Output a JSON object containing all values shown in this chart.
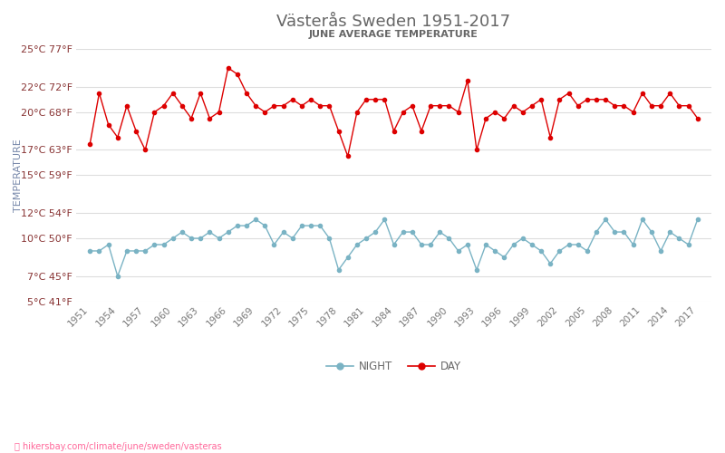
{
  "title": "Västerås Sweden 1951-2017",
  "subtitle": "JUNE AVERAGE TEMPERATURE",
  "ylabel": "TEMPERATURE",
  "xlabel_url": "hikersbay.com/climate/june/sweden/vasteras",
  "yticks_celsius": [
    25,
    22,
    20,
    17,
    15,
    12,
    10,
    7,
    5
  ],
  "yticks_fahrenheit": [
    77,
    72,
    68,
    63,
    59,
    54,
    50,
    45,
    41
  ],
  "years": [
    1951,
    1952,
    1953,
    1954,
    1955,
    1956,
    1957,
    1958,
    1959,
    1960,
    1961,
    1962,
    1963,
    1964,
    1965,
    1966,
    1967,
    1968,
    1969,
    1970,
    1971,
    1972,
    1973,
    1974,
    1975,
    1976,
    1977,
    1978,
    1979,
    1980,
    1981,
    1982,
    1983,
    1984,
    1985,
    1986,
    1987,
    1988,
    1989,
    1990,
    1991,
    1992,
    1993,
    1994,
    1995,
    1996,
    1997,
    1998,
    1999,
    2000,
    2001,
    2002,
    2003,
    2004,
    2005,
    2006,
    2007,
    2008,
    2009,
    2010,
    2011,
    2012,
    2013,
    2014,
    2015,
    2016,
    2017
  ],
  "day_temps": [
    17.5,
    21.5,
    19.0,
    18.0,
    20.5,
    18.5,
    17.0,
    20.0,
    20.5,
    21.5,
    20.5,
    19.5,
    21.5,
    19.5,
    20.0,
    23.5,
    23.0,
    21.5,
    20.5,
    20.0,
    20.5,
    20.5,
    21.0,
    20.5,
    21.0,
    20.5,
    20.5,
    18.5,
    16.5,
    20.0,
    21.0,
    21.0,
    21.0,
    18.5,
    20.0,
    20.5,
    18.5,
    20.5,
    20.5,
    20.5,
    20.0,
    22.5,
    17.0,
    19.5,
    20.0,
    19.5,
    20.5,
    20.0,
    20.5,
    21.0,
    18.0,
    21.0,
    21.5,
    20.5,
    21.0,
    21.0,
    21.0,
    20.5,
    20.5,
    20.0,
    21.5,
    20.5,
    20.5,
    21.5,
    20.5,
    20.5,
    19.5
  ],
  "night_temps": [
    9.0,
    9.0,
    9.5,
    7.0,
    9.0,
    9.0,
    9.0,
    9.5,
    9.5,
    10.0,
    10.5,
    10.0,
    10.0,
    10.5,
    10.0,
    10.5,
    11.0,
    11.0,
    11.5,
    11.0,
    9.5,
    10.5,
    10.0,
    11.0,
    11.0,
    11.0,
    10.0,
    7.5,
    8.5,
    9.5,
    10.0,
    10.5,
    11.5,
    9.5,
    10.5,
    10.5,
    9.5,
    9.5,
    10.5,
    10.0,
    9.0,
    9.5,
    7.5,
    9.5,
    9.0,
    8.5,
    9.5,
    10.0,
    9.5,
    9.0,
    8.0,
    9.0,
    9.5,
    9.5,
    9.0,
    10.5,
    11.5,
    10.5,
    10.5,
    9.5,
    11.5,
    10.5,
    9.0,
    10.5,
    10.0,
    9.5,
    11.5
  ],
  "day_color": "#dd0000",
  "night_color": "#7ab3c4",
  "background_color": "#ffffff",
  "grid_color": "#dddddd",
  "title_color": "#666666",
  "subtitle_color": "#666666",
  "ylabel_color": "#7788aa",
  "ytick_color": "#883333",
  "xtick_color": "#777777",
  "url_color": "#ff6699",
  "legend_night_color": "#7ab3c4",
  "legend_day_color": "#dd0000",
  "ylim": [
    5,
    25
  ],
  "xtick_years": [
    1951,
    1954,
    1957,
    1960,
    1963,
    1966,
    1969,
    1972,
    1975,
    1978,
    1981,
    1984,
    1987,
    1990,
    1993,
    1996,
    1999,
    2002,
    2005,
    2008,
    2011,
    2014,
    2017
  ],
  "figsize": [
    8.0,
    5.0
  ],
  "dpi": 100
}
